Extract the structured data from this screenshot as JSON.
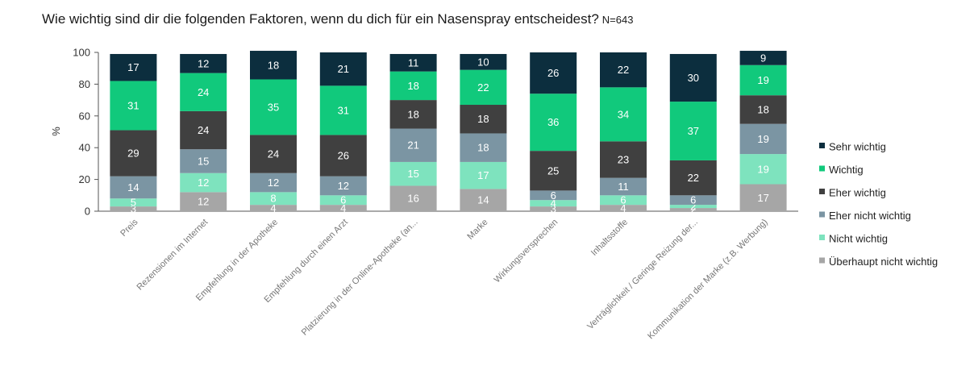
{
  "title": "Wie wichtig sind dir die folgenden Faktoren, wenn du dich für ein Nasenspray entscheidest?",
  "sample_size": "N=643",
  "chart_data": {
    "type": "bar",
    "stacked": true,
    "ylabel": "%",
    "ylim": [
      0,
      100
    ],
    "yticks": [
      "0",
      "20",
      "40",
      "60",
      "80",
      "100"
    ],
    "categories": [
      "Preis",
      "Rezensionen im Internet",
      "Empfehlung in der Apotheke",
      "Empfehlung durch einen Arzt",
      "Platzierung in der Online-Apotheke (an...",
      "Marke",
      "Wirkungsversprechen",
      "Inhaltsstoffe",
      "Verträglichkeit / Geringe Reizung der...",
      "Kommunikation der Marke (z.B. Werbung)"
    ],
    "series": [
      {
        "name": "Überhaupt nicht wichtig",
        "color": "#a6a6a6",
        "label_color": "#ffffff",
        "values": [
          3,
          12,
          4,
          4,
          16,
          14,
          3,
          4,
          2,
          17
        ]
      },
      {
        "name": "Nicht wichtig",
        "color": "#7ee3be",
        "label_color": "#ffffff",
        "values": [
          5,
          12,
          8,
          6,
          15,
          17,
          4,
          6,
          2,
          19
        ]
      },
      {
        "name": "Eher nicht wichtig",
        "color": "#7b95a3",
        "label_color": "#ffffff",
        "values": [
          14,
          15,
          12,
          12,
          21,
          18,
          6,
          11,
          6,
          19
        ]
      },
      {
        "name": "Eher wichtig",
        "color": "#404040",
        "label_color": "#ffffff",
        "values": [
          29,
          24,
          24,
          26,
          18,
          18,
          25,
          23,
          22,
          18
        ]
      },
      {
        "name": "Wichtig",
        "color": "#11c97c",
        "label_color": "#ffffff",
        "values": [
          31,
          24,
          35,
          31,
          18,
          22,
          36,
          34,
          37,
          19
        ]
      },
      {
        "name": "Sehr wichtig",
        "color": "#0c2e3e",
        "label_color": "#ffffff",
        "values": [
          17,
          12,
          18,
          21,
          11,
          10,
          26,
          22,
          30,
          9
        ]
      }
    ],
    "legend_order": [
      "Sehr wichtig",
      "Wichtig",
      "Eher wichtig",
      "Eher nicht wichtig",
      "Nicht wichtig",
      "Überhaupt nicht wichtig"
    ],
    "legend_position": "right"
  }
}
